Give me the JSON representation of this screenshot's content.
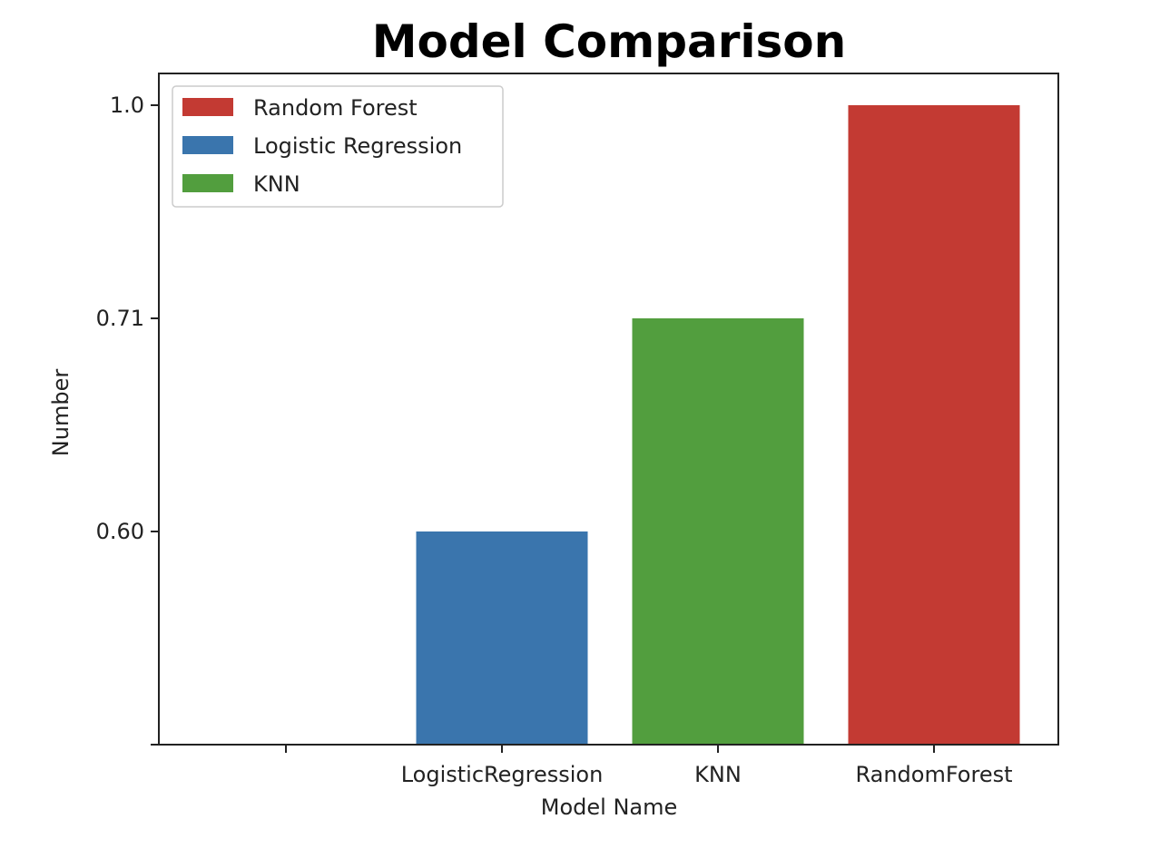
{
  "chart_data": {
    "type": "bar",
    "title": "Model Comparison",
    "xlabel": "Model Name",
    "ylabel": "Number",
    "categories": [
      "",
      "LogisticRegression",
      "KNN",
      "RandomForest"
    ],
    "values": [
      null,
      0.6,
      0.71,
      1.0
    ],
    "bar_colors": [
      "",
      "#3a75ad",
      "#529e3e",
      "#c33a33"
    ],
    "y_tick_labels": [
      "",
      "0.60",
      "0.71",
      "1.0"
    ],
    "legend": {
      "placement": "top-left",
      "entries": [
        {
          "label": "Random Forest",
          "color": "#c33a33"
        },
        {
          "label": "Logistic Regression",
          "color": "#3a75ad"
        },
        {
          "label": "KNN",
          "color": "#529e3e"
        }
      ]
    },
    "grid": false
  }
}
